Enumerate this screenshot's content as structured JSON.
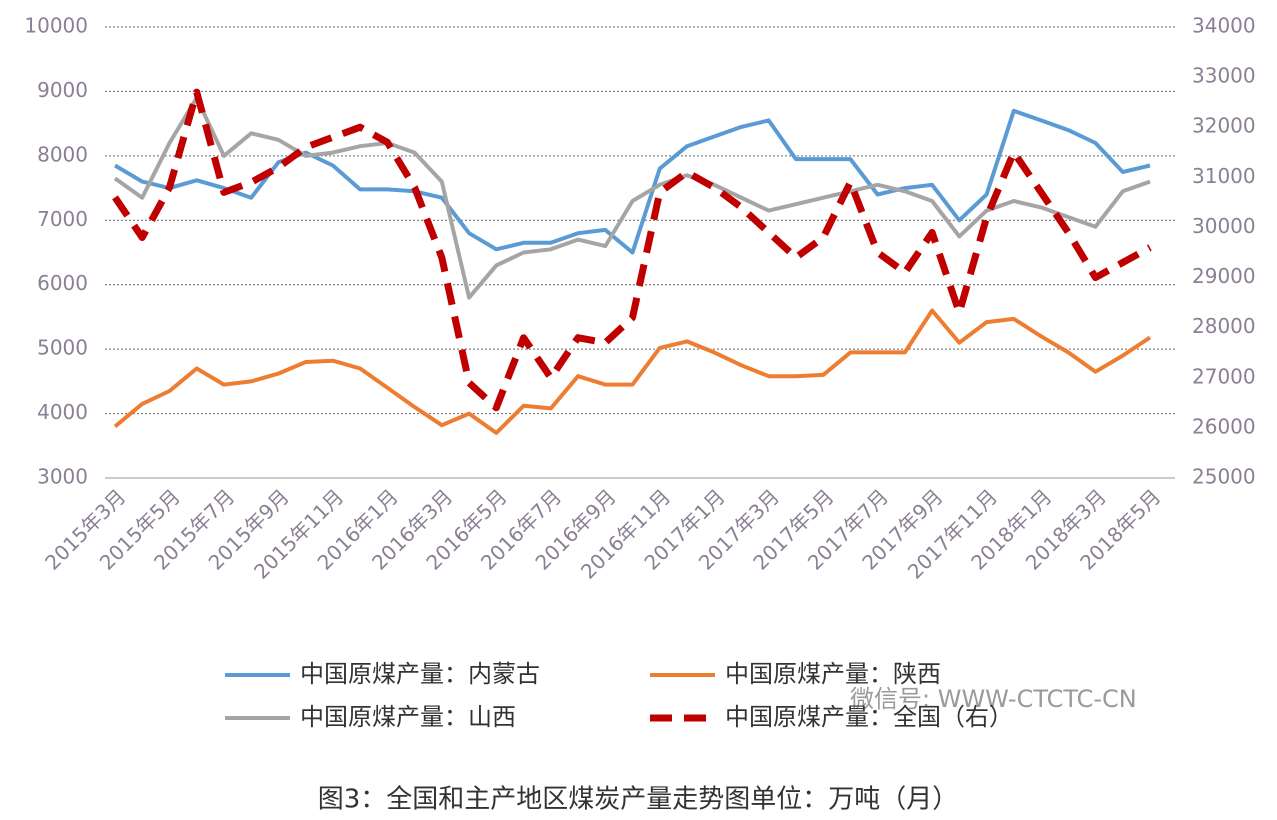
{
  "chart_data": {
    "type": "line",
    "categories": [
      "2015年3月",
      null,
      "2015年5月",
      null,
      "2015年7月",
      null,
      "2015年9月",
      null,
      "2015年11月",
      null,
      "2016年1月",
      null,
      "2016年3月",
      null,
      "2016年5月",
      null,
      "2016年7月",
      null,
      "2016年9月",
      null,
      "2016年11月",
      null,
      "2017年1月",
      null,
      "2017年3月",
      null,
      "2017年5月",
      null,
      "2017年7月",
      null,
      "2017年9月",
      null,
      "2017年11月",
      null,
      "2018年1月",
      null,
      "2018年3月",
      null,
      "2018年5月"
    ],
    "series": [
      {
        "name": "中国原煤产量：内蒙古",
        "color": "#5b9bd5",
        "values": [
          7850,
          7600,
          7500,
          7620,
          7500,
          7350,
          7900,
          8050,
          7850,
          7480,
          7480,
          7450,
          7350,
          6800,
          6550,
          6650,
          6650,
          6800,
          6850,
          6500,
          7800,
          8150,
          8300,
          8450,
          8550,
          7950,
          7950,
          7950,
          7400,
          7500,
          7550,
          7000,
          7400,
          8700,
          8550,
          8400,
          8200,
          7750,
          7850
        ]
      },
      {
        "name": "中国原煤产量：陕西",
        "color": "#ed7d31",
        "values": [
          3800,
          4150,
          4350,
          4700,
          4450,
          4500,
          4620,
          4800,
          4820,
          4700,
          4400,
          4100,
          3820,
          4000,
          3700,
          4120,
          4080,
          4580,
          4450,
          4450,
          5020,
          5120,
          4950,
          4750,
          4580,
          4580,
          4600,
          4950,
          4950,
          4950,
          5600,
          5100,
          5420,
          5470,
          5200,
          4950,
          4650,
          4900,
          5180
        ]
      },
      {
        "name": "中国原煤产量：山西",
        "color": "#a5a5a5",
        "values": [
          7650,
          7350,
          8200,
          8900,
          8000,
          8350,
          8250,
          8000,
          8050,
          8150,
          8200,
          8050,
          7600,
          5800,
          6300,
          6500,
          6550,
          6700,
          6600,
          7300,
          7550,
          7700,
          7550,
          7350,
          7150,
          7250,
          7350,
          7450,
          7550,
          7450,
          7300,
          6750,
          7150,
          7300,
          7200,
          7050,
          6900,
          7450,
          7600
        ]
      },
      {
        "name": "中国原煤产量：全国（右）",
        "color": "#c00000",
        "axis": "y2",
        "line_style": "dashed",
        "values": [
          30600,
          29800,
          30800,
          32700,
          30700,
          30900,
          31200,
          31600,
          31800,
          32000,
          31700,
          30800,
          29400,
          26900,
          26400,
          27800,
          27000,
          27800,
          27700,
          28200,
          30700,
          31100,
          30800,
          30400,
          29900,
          29400,
          29800,
          30900,
          29500,
          29100,
          29900,
          28300,
          30200,
          31500,
          30700,
          29900,
          29000,
          29300,
          29600
        ]
      }
    ],
    "ylim": [
      3000,
      10000
    ],
    "yticks": [
      3000,
      4000,
      5000,
      6000,
      7000,
      8000,
      9000,
      10000
    ],
    "y2lim": [
      25000,
      34000
    ],
    "y2ticks": [
      25000,
      26000,
      27000,
      28000,
      29000,
      30000,
      31000,
      32000,
      33000,
      34000
    ],
    "grid": true,
    "watermark": "微信号: WWW-CTCTC-CN",
    "caption": "图3：全国和主产地区煤炭产量走势图单位：万吨（月）"
  }
}
